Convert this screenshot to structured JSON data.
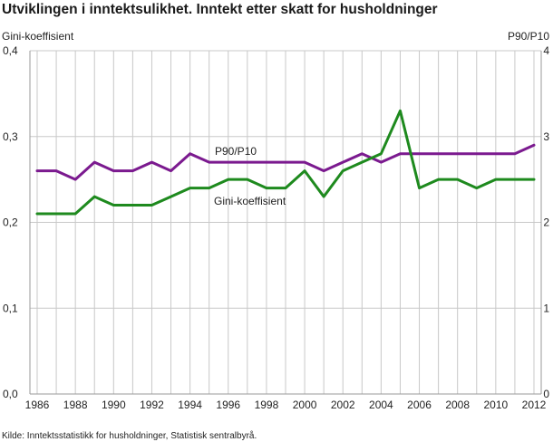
{
  "chart_data": {
    "type": "line",
    "title": "Utviklingen i inntektsulikhet. Inntekt etter skatt for husholdninger",
    "ylabel_left": "Gini-koeffisient",
    "ylabel_right": "P90/P10",
    "source": "Kilde:  Inntektsstatistikk for husholdninger, Statistisk sentralbyrå.",
    "x": [
      1986,
      1987,
      1988,
      1989,
      1990,
      1991,
      1992,
      1993,
      1994,
      1995,
      1996,
      1997,
      1998,
      1999,
      2000,
      2001,
      2002,
      2003,
      2004,
      2005,
      2006,
      2007,
      2008,
      2009,
      2010,
      2011,
      2012
    ],
    "xlim": [
      1986,
      2012
    ],
    "x_ticks": [
      "1986",
      "1988",
      "1990",
      "1992",
      "1994",
      "1996",
      "1998",
      "2000",
      "2002",
      "2004",
      "2006",
      "2008",
      "2010",
      "2012"
    ],
    "x_tick_values": [
      1986,
      1988,
      1990,
      1992,
      1994,
      1996,
      1998,
      2000,
      2002,
      2004,
      2006,
      2008,
      2010,
      2012
    ],
    "ylim_left": [
      0,
      0.4
    ],
    "y_ticks_left": [
      "0,0",
      "0,1",
      "0,2",
      "0,3",
      "0,4"
    ],
    "y_tick_values_left": [
      0,
      0.1,
      0.2,
      0.3,
      0.4
    ],
    "ylim_right": [
      0,
      4
    ],
    "y_ticks_right": [
      "0",
      "1",
      "2",
      "3",
      "4"
    ],
    "y_tick_values_right": [
      0,
      1,
      2,
      3,
      4
    ],
    "grid": true,
    "series": [
      {
        "name": "P90/P10",
        "axis": "right",
        "color": "#7b1a8f",
        "values": [
          2.6,
          2.6,
          2.5,
          2.7,
          2.6,
          2.6,
          2.7,
          2.6,
          2.8,
          2.7,
          2.7,
          2.7,
          2.7,
          2.7,
          2.7,
          2.6,
          2.7,
          2.8,
          2.7,
          2.8,
          2.8,
          2.8,
          2.8,
          2.8,
          2.8,
          2.8,
          2.9
        ]
      },
      {
        "name": "Gini-koeffisient",
        "axis": "left",
        "color": "#1e8a1e",
        "values": [
          0.21,
          0.21,
          0.21,
          0.23,
          0.22,
          0.22,
          0.22,
          0.23,
          0.24,
          0.24,
          0.25,
          0.25,
          0.24,
          0.24,
          0.26,
          0.23,
          0.26,
          0.27,
          0.28,
          0.33,
          0.24,
          0.25,
          0.25,
          0.24,
          0.25,
          0.25,
          0.25
        ]
      }
    ]
  }
}
